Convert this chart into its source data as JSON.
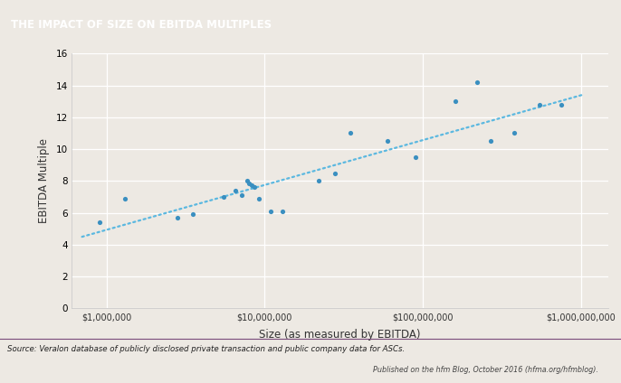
{
  "title": "THE IMPACT OF SIZE ON EBITDA MULTIPLES",
  "title_bg_color": "#5e1160",
  "title_text_color": "#ffffff",
  "bg_color": "#ede9e3",
  "plot_bg_color": "#ede9e3",
  "xlabel": "Size (as measured by EBITDA)",
  "ylabel": "EBITDA Multiple",
  "ylim": [
    0,
    16
  ],
  "yticks": [
    0,
    2,
    4,
    6,
    8,
    10,
    12,
    14,
    16
  ],
  "scatter_color": "#3a8fc0",
  "trendline_color": "#5bb8e0",
  "source_line1": "Source: Veralon database of publicly disclosed private transaction and public company data for ASCs.",
  "source_line2": "Published on the hfm Blog, October 2016 (hfma.org/hfmblog).",
  "scatter_x": [
    900000,
    1300000,
    2800000,
    3500000,
    5500000,
    6500000,
    7200000,
    7800000,
    8000000,
    8300000,
    8600000,
    9200000,
    11000000,
    13000000,
    22000000,
    28000000,
    35000000,
    60000000,
    90000000,
    160000000,
    220000000,
    270000000,
    380000000,
    550000000,
    750000000
  ],
  "scatter_y": [
    5.4,
    6.9,
    5.7,
    5.9,
    7.0,
    7.4,
    7.1,
    8.0,
    7.85,
    7.75,
    7.65,
    6.9,
    6.1,
    6.1,
    8.0,
    8.5,
    11.0,
    10.5,
    9.5,
    13.0,
    14.2,
    10.5,
    11.0,
    12.8,
    12.8
  ],
  "separator_color": "#7a4a7a",
  "grid_color": "#ffffff",
  "spine_color": "#cccccc"
}
